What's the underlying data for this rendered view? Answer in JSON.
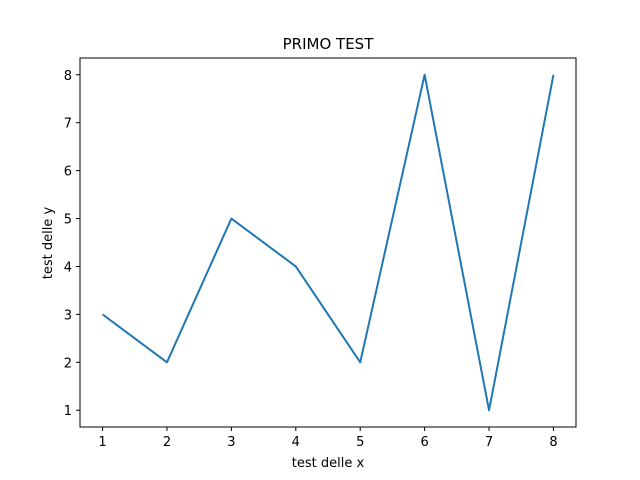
{
  "chart_data": {
    "type": "line",
    "title": "PRIMO TEST",
    "xlabel": "test delle x",
    "ylabel": "test delle y",
    "x": [
      1,
      2,
      3,
      4,
      5,
      6,
      7,
      8
    ],
    "series": [
      {
        "values": [
          3,
          2,
          5,
          4,
          2,
          8,
          1,
          8
        ],
        "color": "#1f77b4"
      }
    ],
    "xlim": [
      0.65,
      8.35
    ],
    "ylim": [
      0.65,
      8.35
    ],
    "xticks": [
      "1",
      "2",
      "3",
      "4",
      "5",
      "6",
      "7",
      "8"
    ],
    "yticks": [
      "1",
      "2",
      "3",
      "4",
      "5",
      "6",
      "7",
      "8"
    ],
    "grid": false,
    "legend": "none"
  }
}
